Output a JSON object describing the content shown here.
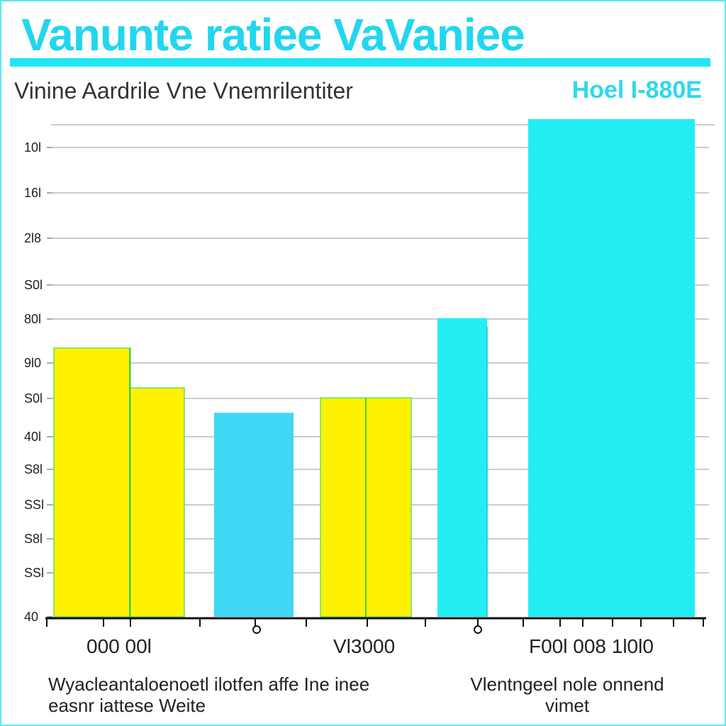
{
  "header": {
    "title": "Vanunte ratiee VaVaniee",
    "subtitle": "Vinine Aardrile Vne Vnemrilentiter",
    "badge": "Hoel I-880E"
  },
  "chart_data": {
    "type": "bar",
    "title": "Vanunte ratiee VaVaniee",
    "subtitle": "Vinine Aardrile Vne Vnemrilentiter",
    "ytick_labels": [
      "10l",
      "16l",
      "2l8",
      "S0l",
      "80l",
      "9l0",
      "S0l",
      "40l",
      "S8l",
      "SSl",
      "S8l",
      "SSl",
      "40"
    ],
    "x_labels": [
      "000 00l",
      "Vl3000",
      "F00l 008 1l0l0"
    ],
    "bars": [
      {
        "category": "000 00l",
        "value": 0.54,
        "color": "#fff200"
      },
      {
        "category": "000 00l",
        "value": 0.46,
        "color": "#fff200"
      },
      {
        "category": "",
        "value": 0.41,
        "color": "#3fd7f4"
      },
      {
        "category": "Vl3000",
        "value": 0.44,
        "color": "#fff200"
      },
      {
        "category": "Vl3000",
        "value": 0.44,
        "color": "#fff200"
      },
      {
        "category": "",
        "value": 0.6,
        "color": "#22eef2"
      },
      {
        "category": "F00l 008 1l0l0",
        "value": 1.0,
        "color": "#22eef2"
      }
    ],
    "ylim": [
      0,
      1
    ],
    "grid": true,
    "notes": [
      "Wyacleantaloenoetl ilotfen affe Ine inee easnr iattese Weite",
      "Vlentngeel nole onnend vimet"
    ]
  }
}
